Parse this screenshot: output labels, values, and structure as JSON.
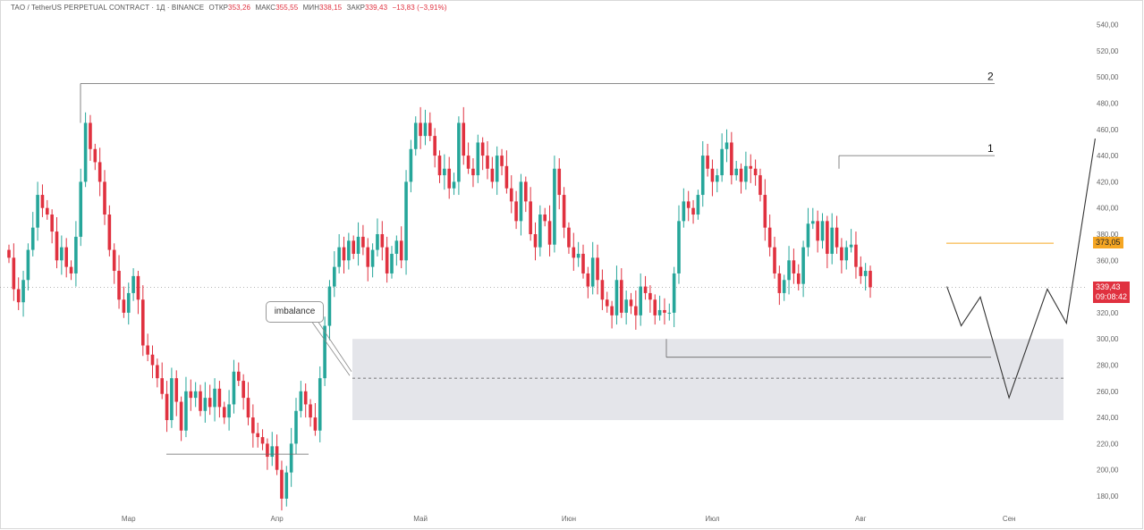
{
  "header": {
    "symbol": "TAO / TetherUS PERPETUAL CONTRACT · 1Д · BINANCE",
    "open_label": "ОТКР",
    "open_value": "353,26",
    "high_label": "МАКС",
    "high_value": "355,55",
    "low_label": "МИН",
    "low_value": "338,15",
    "close_label": "ЗАКР",
    "close_value": "339,43",
    "change_value": "−13,83 (−3,91%)"
  },
  "annotations": {
    "imbalance_label": "imbalance",
    "level_1_label": "1",
    "level_2_label": "2"
  },
  "price_tags": {
    "target_price": "373,05",
    "last_price": "339,43",
    "countdown": "09:08:42"
  },
  "colors": {
    "up": "#26a69a",
    "down": "#e0313f",
    "zone": "#e4e5ea",
    "target": "#f5a623",
    "level_line": "#666666",
    "projection": "#333333"
  },
  "chart_data": {
    "type": "candlestick",
    "title": "",
    "ylim": [
      168,
      550
    ],
    "y_ticks": [
      "180,00",
      "200,00",
      "220,00",
      "240,00",
      "260,00",
      "280,00",
      "300,00",
      "320,00",
      "340,00",
      "360,00",
      "380,00",
      "400,00",
      "420,00",
      "440,00",
      "460,00",
      "480,00",
      "500,00",
      "520,00",
      "540,00"
    ],
    "x_ticks": [
      "Мар",
      "Апр",
      "Май",
      "Июн",
      "Июл",
      "Авг",
      "Сен"
    ],
    "grid": false,
    "candles_start": "2024-02-05",
    "closes": [
      362,
      338,
      328,
      345,
      368,
      385,
      410,
      400,
      395,
      382,
      360,
      370,
      355,
      350,
      378,
      420,
      465,
      445,
      435,
      420,
      395,
      368,
      352,
      330,
      320,
      335,
      348,
      330,
      295,
      288,
      280,
      270,
      258,
      238,
      270,
      252,
      230,
      260,
      255,
      260,
      245,
      255,
      248,
      262,
      248,
      240,
      250,
      275,
      268,
      255,
      240,
      228,
      225,
      220,
      210,
      218,
      200,
      178,
      198,
      220,
      245,
      260,
      250,
      240,
      230,
      270,
      310,
      340,
      355,
      370,
      360,
      375,
      365,
      378,
      370,
      355,
      368,
      380,
      370,
      350,
      365,
      375,
      360,
      420,
      445,
      465,
      455,
      465,
      455,
      440,
      425,
      430,
      415,
      420,
      465,
      440,
      430,
      425,
      450,
      440,
      430,
      420,
      440,
      432,
      415,
      405,
      390,
      420,
      405,
      380,
      370,
      395,
      390,
      372,
      430,
      410,
      385,
      370,
      362,
      365,
      350,
      340,
      362,
      345,
      330,
      325,
      318,
      345,
      320,
      330,
      325,
      318,
      340,
      335,
      330,
      318,
      322,
      320,
      320,
      350,
      390,
      405,
      400,
      395,
      410,
      440,
      430,
      420,
      425,
      445,
      450,
      425,
      430,
      420,
      432,
      430,
      425,
      410,
      385,
      370,
      350,
      335,
      345,
      360,
      350,
      342,
      370,
      388,
      390,
      375,
      390,
      365,
      385,
      370,
      360,
      370,
      372,
      355,
      348,
      352,
      339.43
    ],
    "last_close": 339.43,
    "target_level": 373.05,
    "level_1": 440,
    "level_2": 495,
    "imbalance_zone": [
      238,
      300
    ],
    "imbalance_mid": 270,
    "projection_path": [
      [
        340,
        "2024-08-19"
      ],
      [
        310,
        "2024-08-22"
      ],
      [
        332,
        "2024-08-26"
      ],
      [
        255,
        "2024-09-01"
      ],
      [
        338,
        "2024-09-09"
      ],
      [
        312,
        "2024-09-13"
      ],
      [
        453,
        "2024-09-19"
      ]
    ]
  }
}
